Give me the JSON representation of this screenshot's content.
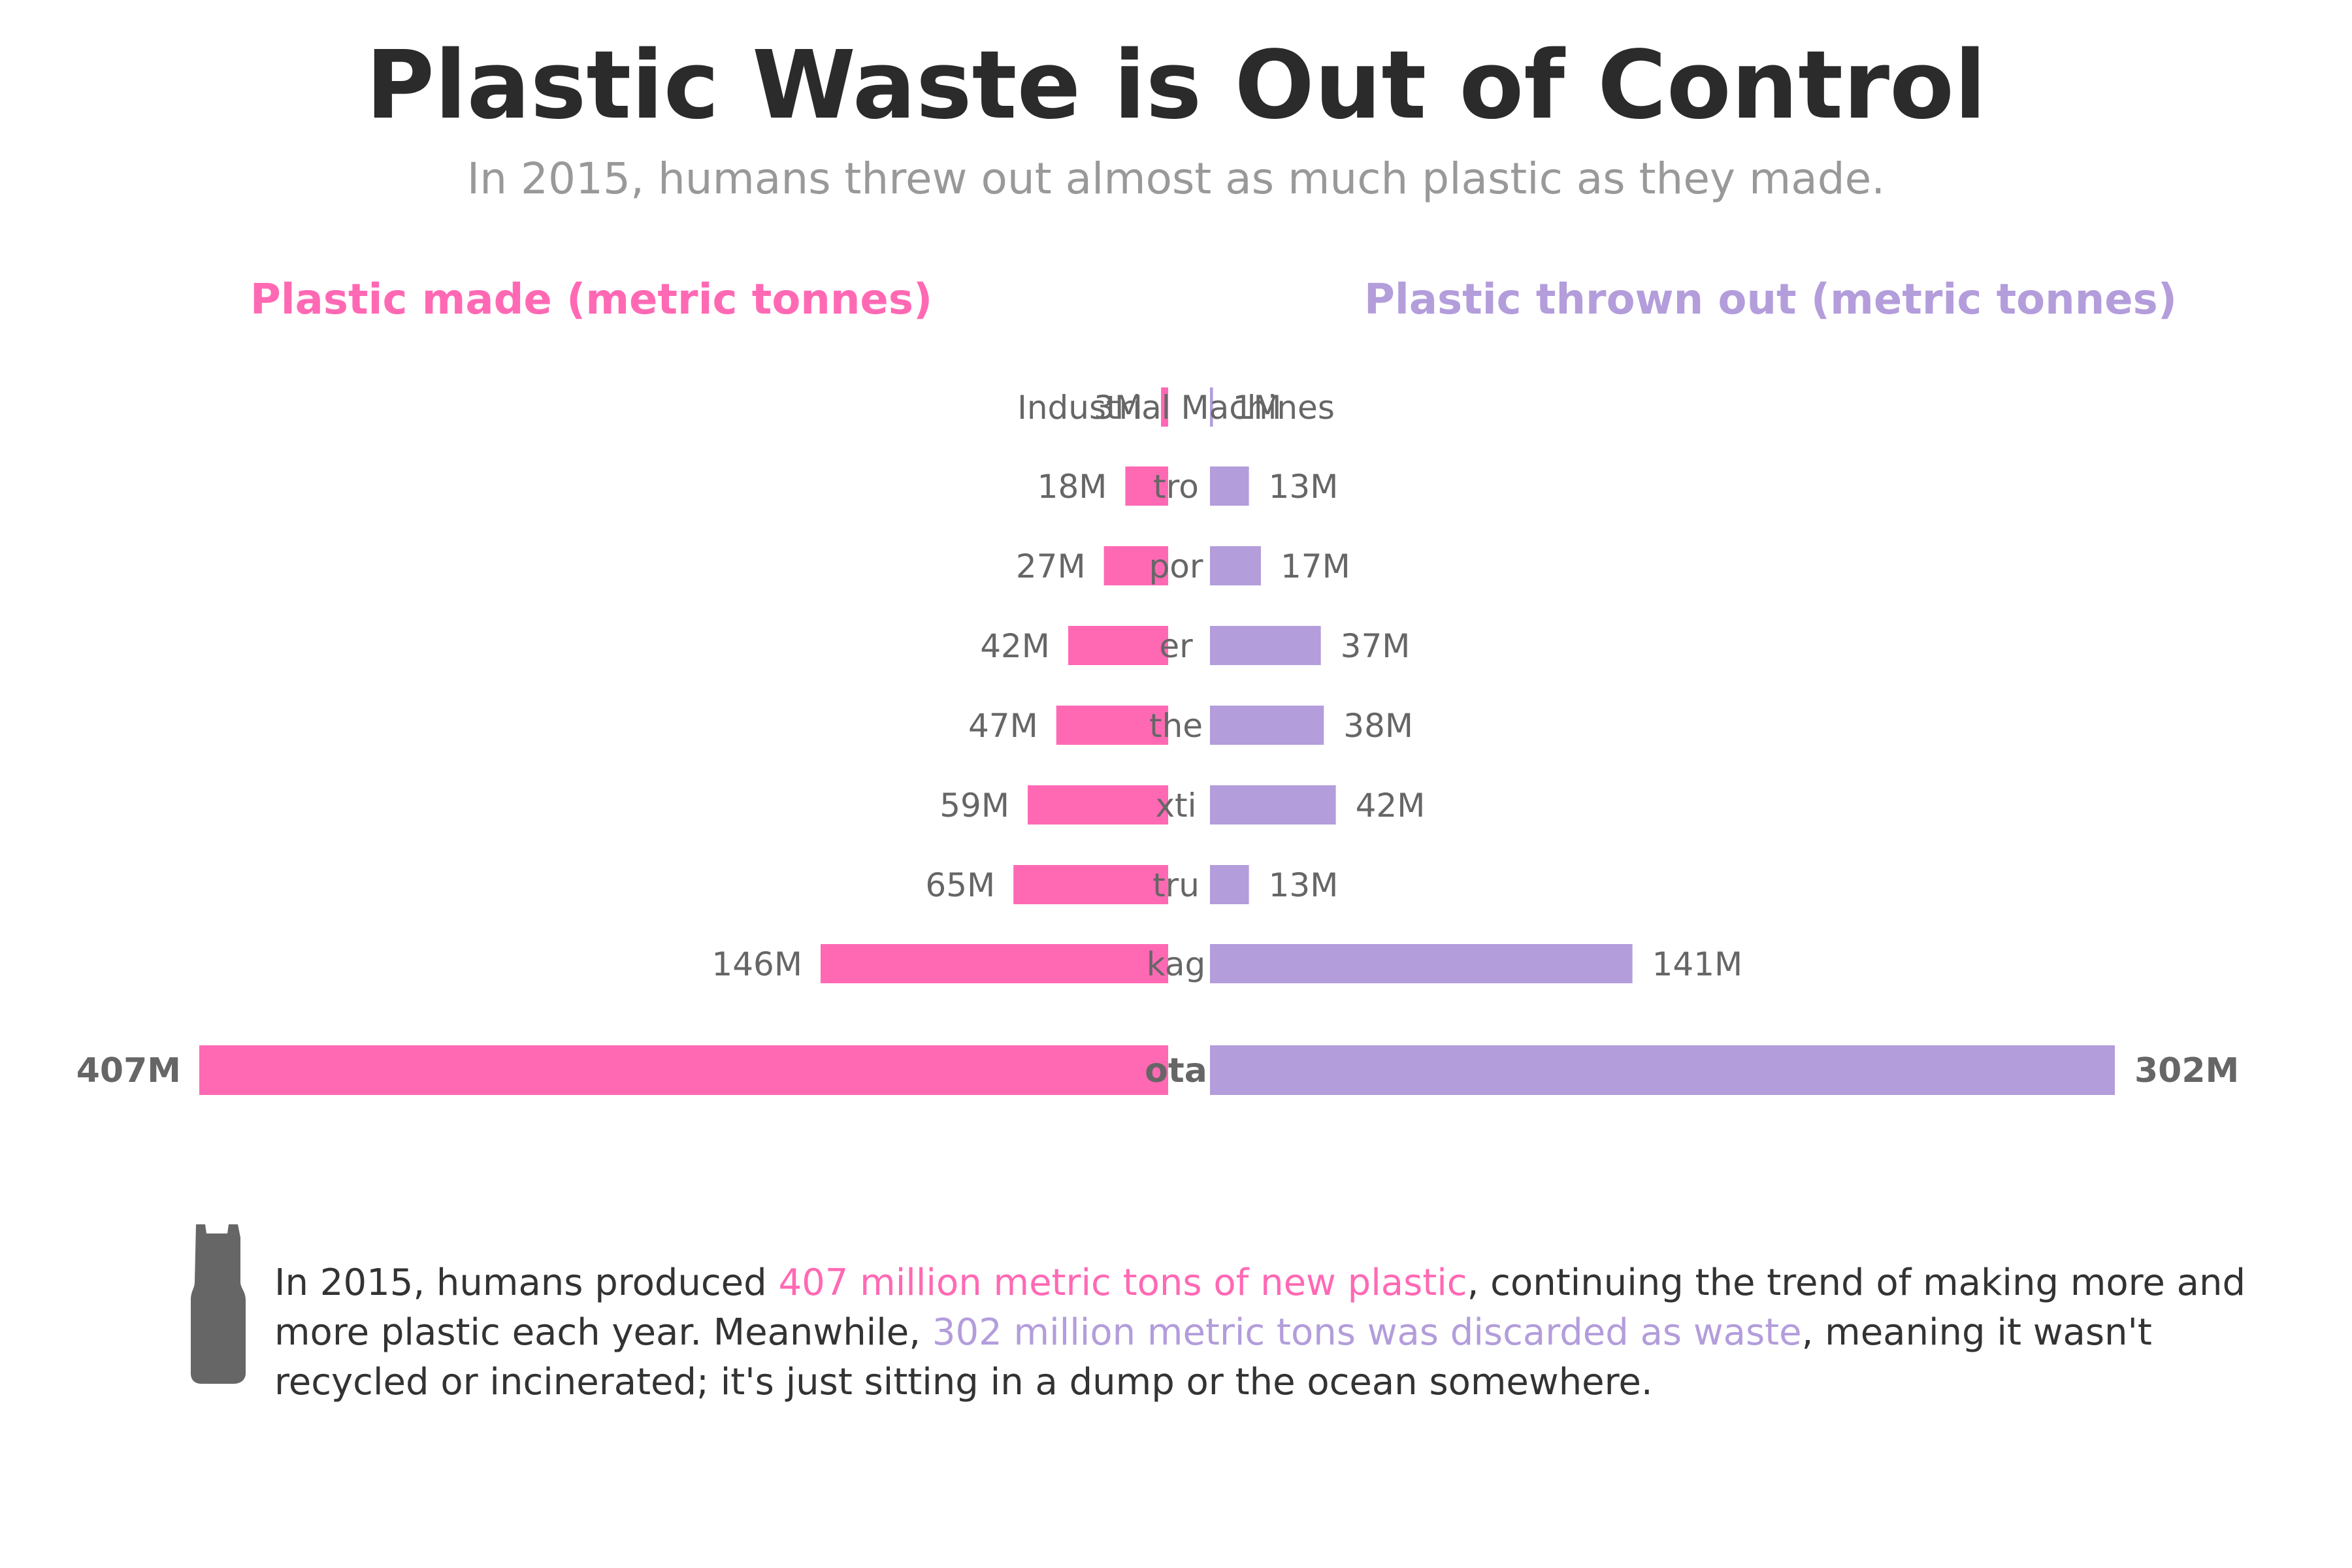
{
  "title": "Plastic Waste is Out of Control",
  "subtitle": "In 2015, humans threw out almost as much plastic as they made.",
  "colors": {
    "made": "#FF69B4",
    "thrown": "#B39DDB",
    "label": "#666666",
    "title": "#2b2b2b",
    "subtitle": "#999999"
  },
  "chart_data": {
    "type": "bar",
    "layout": "back-to-back horizontal",
    "categories": [
      "Industrial Machines",
      "Electronics",
      "Transportation",
      "Other",
      "Consumer & Institutional Products",
      "Textiles",
      "Construction",
      "Packaging",
      "Total"
    ],
    "series": [
      {
        "name": "Plastic made (metric tonnes)",
        "values": [
          3,
          18,
          27,
          42,
          47,
          59,
          65,
          146,
          407
        ],
        "labels": [
          "3M",
          "18M",
          "27M",
          "42M",
          "47M",
          "59M",
          "65M",
          "146M",
          "407M"
        ]
      },
      {
        "name": "Plastic thrown out (metric tonnes)",
        "values": [
          1,
          13,
          17,
          37,
          38,
          42,
          13,
          141,
          302
        ],
        "labels": [
          "1M",
          "13M",
          "17M",
          "37M",
          "38M",
          "42M",
          "13M",
          "141M",
          "302M"
        ]
      }
    ],
    "unit": "million metric tonnes",
    "category_label_text": [
      "Industrial Machines",
      "tro",
      "por",
      "er",
      "the",
      "xti",
      "tru",
      "kag",
      "ota"
    ]
  },
  "footer": {
    "p1": "In 2015, humans produced ",
    "h1": "407 million metric tons of new plastic",
    "p2": ", continuing the trend of making more and more plastic each year. Meanwhile, ",
    "h2": "302 million metric tons was discarded as waste",
    "p3": ", meaning it wasn't recycled or incinerated; it's just sitting in a dump or the ocean somewhere.",
    "icon": "bottle-icon"
  }
}
